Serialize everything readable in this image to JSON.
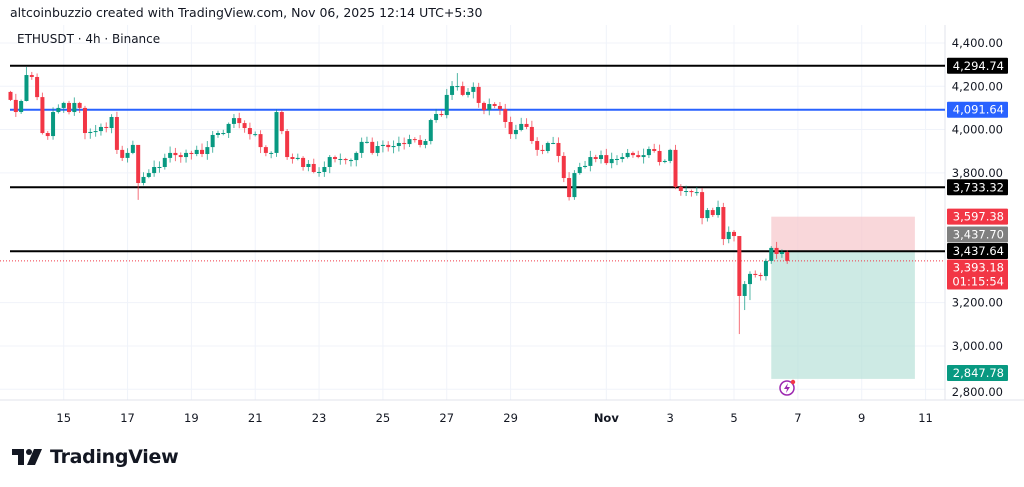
{
  "header": {
    "credit": "altcoinbuzzio created with TradingView.com, Nov 06, 2025 12:14 UTC+5:30",
    "symbol": "ETHUSDT · 4h · Binance"
  },
  "footer": {
    "brand": "TradingView"
  },
  "colors": {
    "up": "#089981",
    "down": "#f23645",
    "blue_line": "#2962ff",
    "black_line": "#000000",
    "grid": "#f0f3fa",
    "axis_text": "#131722",
    "stop_zone": "#f7c9ce",
    "target_zone": "#b2dfd5",
    "entry_label": "#808080",
    "alert_icon": "#9c27b0"
  },
  "chart_data": {
    "type": "candlestick",
    "title": "ETHUSDT · 4h · Binance",
    "ylim": [
      2760,
      4460
    ],
    "y_ticks": [
      4400,
      4200,
      4000,
      3800,
      3200,
      3000,
      2800
    ],
    "y_tick_labels": [
      "4,400.00",
      "4,200.00",
      "4,000.00",
      "3,800.00",
      "3,200.00",
      "3,000.00",
      "2,800.00"
    ],
    "x_ticks": [
      {
        "label": "15",
        "index": 10
      },
      {
        "label": "17",
        "index": 22
      },
      {
        "label": "19",
        "index": 34
      },
      {
        "label": "21",
        "index": 46
      },
      {
        "label": "23",
        "index": 58
      },
      {
        "label": "25",
        "index": 70
      },
      {
        "label": "27",
        "index": 82
      },
      {
        "label": "29",
        "index": 94
      },
      {
        "label": "Nov",
        "index": 112
      },
      {
        "label": "3",
        "index": 124
      },
      {
        "label": "5",
        "index": 136
      },
      {
        "label": "7",
        "index": 148
      },
      {
        "label": "9",
        "index": 160
      },
      {
        "label": "11",
        "index": 172
      }
    ],
    "first_open": 4174,
    "closes": [
      4137,
      4081,
      4132,
      4252,
      4243,
      4150,
      3984,
      3970,
      4081,
      4100,
      4123,
      4081,
      4123,
      4100,
      3984,
      3989,
      3993,
      4012,
      4007,
      4058,
      3906,
      3869,
      3892,
      3929,
      3753,
      3781,
      3799,
      3827,
      3827,
      3869,
      3892,
      3882,
      3873,
      3892,
      3887,
      3906,
      3887,
      3919,
      3975,
      3984,
      3984,
      4026,
      4053,
      4030,
      4007,
      3979,
      3979,
      3919,
      3892,
      3892,
      4081,
      3993,
      3873,
      3864,
      3869,
      3827,
      3841,
      3804,
      3804,
      3827,
      3873,
      3864,
      3864,
      3859,
      3859,
      3892,
      3943,
      3943,
      3892,
      3924,
      3929,
      3919,
      3924,
      3938,
      3933,
      3956,
      3952,
      3929,
      3947,
      4044,
      4072,
      4067,
      4160,
      4201,
      4201,
      4160,
      4174,
      4197,
      4123,
      4090,
      4118,
      4109,
      4095,
      4035,
      3979,
      3998,
      4026,
      4012,
      3947,
      3906,
      3901,
      3938,
      3938,
      3878,
      3776,
      3688,
      3799,
      3827,
      3832,
      3873,
      3864,
      3882,
      3845,
      3864,
      3864,
      3873,
      3892,
      3882,
      3873,
      3882,
      3910,
      3901,
      3850,
      3855,
      3906,
      3735,
      3716,
      3716,
      3711,
      3711,
      3591,
      3628,
      3605,
      3642,
      3494,
      3527,
      3508,
      3231,
      3286,
      3333,
      3328,
      3323,
      3393,
      3453,
      3425,
      3434,
      3393.18
    ],
    "wick_overrides": {
      "3": [
        4289,
        4130
      ],
      "24": [
        3900,
        3675
      ],
      "84": [
        4261,
        4180
      ],
      "137": [
        3455,
        3055
      ],
      "138": [
        3300,
        3166
      ],
      "139": [
        3345,
        3212
      ]
    },
    "horizontal_lines": [
      {
        "price": 4294.74,
        "label": "4,294.74",
        "color": "black"
      },
      {
        "price": 4091.64,
        "label": "4,091.64",
        "color": "blue"
      },
      {
        "price": 3733.32,
        "label": "3,733.32",
        "color": "black"
      },
      {
        "price": 3437.64,
        "label": "3,437.64",
        "color": "black"
      }
    ],
    "last_price": {
      "price": 3393.18,
      "label": "3,393.18",
      "countdown": "01:15:54"
    },
    "short_position": {
      "start_index": 143,
      "end_index": 170,
      "entry": 3437.7,
      "entry_label": "3,437.70",
      "stop": 3597.38,
      "stop_label": "3,597.38",
      "target": 2847.78,
      "target_label": "2,847.78"
    }
  }
}
